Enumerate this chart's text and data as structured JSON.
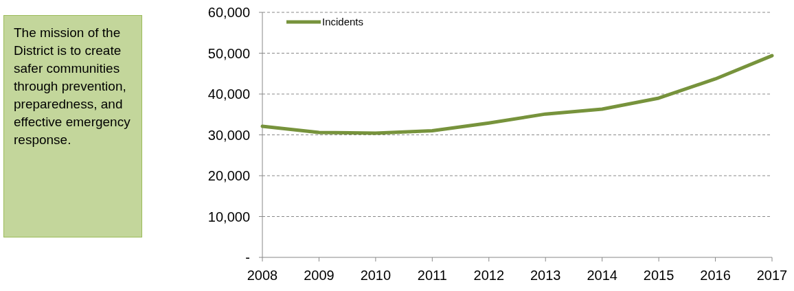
{
  "chart_data": {
    "type": "line",
    "categories": [
      "2008",
      "2009",
      "2010",
      "2011",
      "2012",
      "2013",
      "2014",
      "2015",
      "2016",
      "2017"
    ],
    "series": [
      {
        "name": "Incidents",
        "color": "#77933c",
        "values": [
          32100,
          30600,
          30400,
          31000,
          32900,
          35100,
          36300,
          39000,
          43700,
          49400
        ]
      }
    ],
    "ylim": [
      0,
      60000
    ],
    "yticks": [
      {
        "value": 0,
        "label": "-"
      },
      {
        "value": 10000,
        "label": "10,000"
      },
      {
        "value": 20000,
        "label": "20,000"
      },
      {
        "value": 30000,
        "label": "30,000"
      },
      {
        "value": 40000,
        "label": "40,000"
      },
      {
        "value": 50000,
        "label": "50,000"
      },
      {
        "value": 60000,
        "label": "60,000"
      }
    ],
    "grid": "y",
    "legend": "top left",
    "line_style": "solid",
    "marker": "none",
    "annotations": [
      "The mission of the District is to create safer communities through prevention, preparedness, and effective emergency response."
    ]
  }
}
